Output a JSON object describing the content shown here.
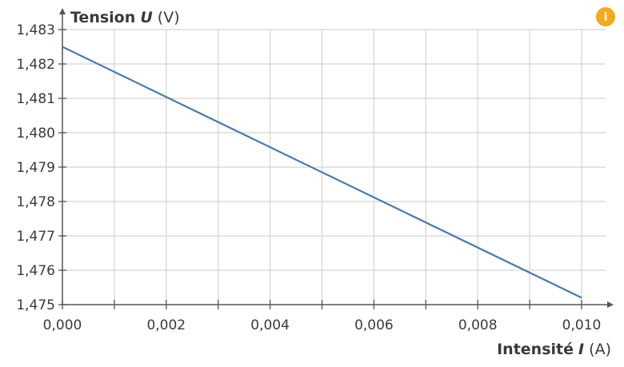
{
  "chart_data": {
    "type": "line",
    "title": "",
    "xlabel": {
      "name": "Intensité",
      "symbol": "I",
      "unit": "(A)"
    },
    "ylabel": {
      "name": "Tension",
      "symbol": "U",
      "unit": "(V)"
    },
    "xlim": [
      0,
      0.01
    ],
    "ylim": [
      1.475,
      1.483
    ],
    "x_ticks": [
      0,
      0.002,
      0.004,
      0.006,
      0.008,
      0.01
    ],
    "x_tick_labels": [
      "0,000",
      "0,002",
      "0,004",
      "0,006",
      "0,008",
      "0,010"
    ],
    "y_ticks": [
      1.475,
      1.476,
      1.477,
      1.478,
      1.479,
      1.48,
      1.481,
      1.482,
      1.483
    ],
    "y_tick_labels": [
      "1,475",
      "1,476",
      "1,477",
      "1,478",
      "1,479",
      "1,480",
      "1,481",
      "1,482",
      "1,483"
    ],
    "x_minor_step": 0.001,
    "grid": true,
    "line_color": "#4a7aab",
    "series": [
      {
        "x": [
          0,
          0.01
        ],
        "y": [
          1.4825,
          1.4752
        ]
      }
    ]
  },
  "info_badge": {
    "icon": "info-icon",
    "glyph": "i",
    "color": "#f0ab22"
  }
}
